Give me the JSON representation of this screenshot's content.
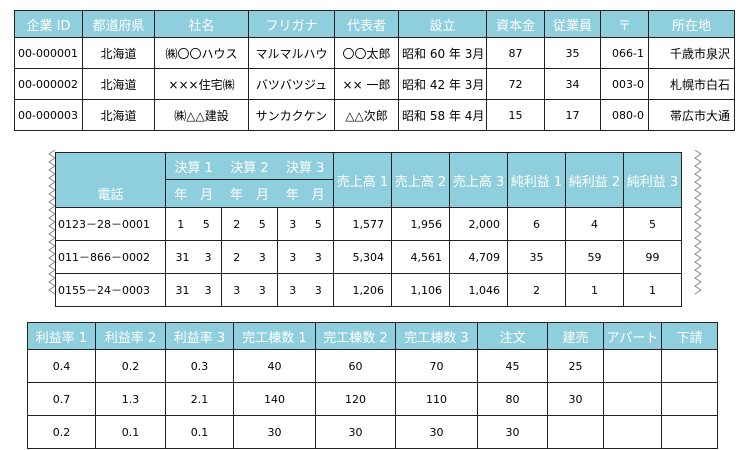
{
  "table1": {
    "headers": [
      "企業 ID",
      "都道府県",
      "社名",
      "フリガナ",
      "代表者",
      "設立",
      "資本金",
      "従業員",
      "〒",
      "所在地"
    ],
    "rows": [
      [
        "00-000001",
        "北海道",
        "㈱〇〇ハウス",
        "マルマルハウ",
        "〇〇太郎",
        "昭和 60 年 3月",
        "87",
        "35",
        "066-1",
        "千歳市泉沢"
      ],
      [
        "00-000002",
        "北海道",
        "×××住宅㈱",
        "バツバツジュ",
        "×× 一郎",
        "昭和 42 年 3月",
        "72",
        "34",
        "003-0",
        "札幌市白石"
      ],
      [
        "00-000003",
        "北海道",
        "㈱△△建設",
        "サンカクケン",
        "△△次郎",
        "昭和 58 年 4月",
        "15",
        "17",
        "080-0",
        "帯広市大通"
      ]
    ]
  },
  "table2": {
    "phone_header": "電話",
    "kessan_headers": [
      "決算 1",
      "決算 2",
      "決算 3"
    ],
    "year_label": "年",
    "month_label": "月",
    "headers": [
      "売上高 1",
      "売上高 2",
      "売上高 3",
      "純利益 1",
      "純利益 2",
      "純利益 3"
    ],
    "rows": [
      {
        "phone": "0123－28－0001",
        "k": [
          [
            "1",
            "5"
          ],
          [
            "2",
            "5"
          ],
          [
            "3",
            "5"
          ]
        ],
        "vals": [
          "1,577",
          "1,956",
          "2,000",
          "6",
          "4",
          "5"
        ]
      },
      {
        "phone": "011－866－0002",
        "k": [
          [
            "31",
            "3"
          ],
          [
            "2",
            "3"
          ],
          [
            "3",
            "3"
          ]
        ],
        "vals": [
          "5,304",
          "4,561",
          "4,709",
          "35",
          "59",
          "99"
        ]
      },
      {
        "phone": "0155－24－0003",
        "k": [
          [
            "31",
            "3"
          ],
          [
            "3",
            "3"
          ],
          [
            "3",
            "3"
          ]
        ],
        "vals": [
          "1,206",
          "1,106",
          "1,046",
          "2",
          "1",
          "1"
        ]
      }
    ]
  },
  "table3": {
    "headers": [
      "利益率 1",
      "利益率 2",
      "利益率 3",
      "完工棟数 1",
      "完工棟数 2",
      "完工棟数 3",
      "注文",
      "建売",
      "アパート",
      "下請"
    ],
    "rows": [
      [
        "0.4",
        "0.2",
        "0.3",
        "40",
        "60",
        "70",
        "45",
        "25",
        "",
        ""
      ],
      [
        "0.7",
        "1.3",
        "2.1",
        "140",
        "120",
        "110",
        "80",
        "30",
        "",
        ""
      ],
      [
        "0.2",
        "0.1",
        "0.1",
        "30",
        "30",
        "30",
        "30",
        "",
        "",
        ""
      ]
    ]
  }
}
